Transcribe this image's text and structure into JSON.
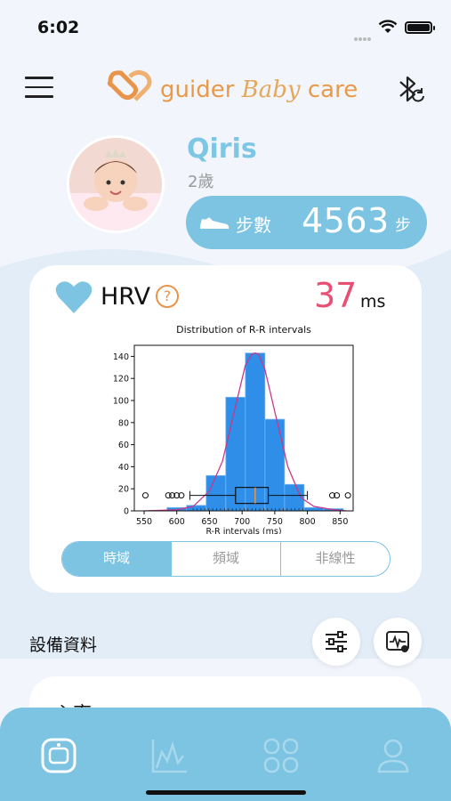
{
  "status_bar": {
    "time": "6:02"
  },
  "header": {
    "logo_main": "guider",
    "logo_baby": "Baby",
    "logo_care": "care"
  },
  "profile": {
    "name": "Qiris",
    "age": "2歲"
  },
  "steps": {
    "label": "步數",
    "value": "4563",
    "unit": "步"
  },
  "hrv": {
    "title": "HRV",
    "help_symbol": "?",
    "value": "37",
    "unit": "ms",
    "tabs": [
      {
        "label": "時域",
        "active": true
      },
      {
        "label": "頻域",
        "active": false
      },
      {
        "label": "非線性",
        "active": false
      }
    ]
  },
  "chart_data": {
    "type": "bar",
    "title": "Distribution of R-R intervals",
    "xlabel": "R-R intervals (ms)",
    "ylabel": "",
    "xlim": [
      535,
      870
    ],
    "ylim": [
      0,
      150
    ],
    "xticks": [
      550,
      600,
      650,
      700,
      750,
      800,
      850
    ],
    "yticks": [
      0,
      20,
      40,
      60,
      80,
      100,
      120,
      140
    ],
    "bins": [
      {
        "x0": 585,
        "x1": 615,
        "value": 3
      },
      {
        "x0": 615,
        "x1": 645,
        "value": 5
      },
      {
        "x0": 645,
        "x1": 675,
        "value": 32
      },
      {
        "x0": 675,
        "x1": 705,
        "value": 103
      },
      {
        "x0": 705,
        "x1": 735,
        "value": 143
      },
      {
        "x0": 735,
        "x1": 765,
        "value": 83
      },
      {
        "x0": 765,
        "x1": 795,
        "value": 24
      },
      {
        "x0": 795,
        "x1": 825,
        "value": 3
      },
      {
        "x0": 825,
        "x1": 855,
        "value": 2
      }
    ],
    "density_curve": {
      "x": [
        550,
        600,
        625,
        650,
        670,
        690,
        705,
        715,
        720,
        725,
        735,
        750,
        770,
        790,
        810,
        840,
        860
      ],
      "y": [
        0,
        1,
        4,
        18,
        45,
        95,
        132,
        142,
        143,
        142,
        128,
        90,
        40,
        12,
        4,
        1,
        0
      ]
    },
    "boxplot": {
      "min": 620,
      "q1": 690,
      "median": 720,
      "q3": 740,
      "max": 800,
      "outliers": [
        552,
        587,
        593,
        600,
        607,
        838,
        845,
        862
      ],
      "y": 14
    }
  },
  "device": {
    "title": "設備資料"
  },
  "heart_rate_card": {
    "label": "心率"
  },
  "colors": {
    "accent": "#7cc4e2",
    "hrv_value": "#e84f72",
    "bar": "#2e8ee8",
    "curve": "#c8388a",
    "logo": "#e89a4a"
  },
  "icons": {
    "menu": "hamburger-icon",
    "bluetooth": "bluetooth-sync-icon",
    "shoe": "shoe-icon",
    "heart": "heart-icon",
    "filter": "sliders-icon",
    "monitor": "monitor-chart-icon",
    "tabs": [
      "watch-icon",
      "chart-icon",
      "apps-icon",
      "profile-icon"
    ]
  }
}
